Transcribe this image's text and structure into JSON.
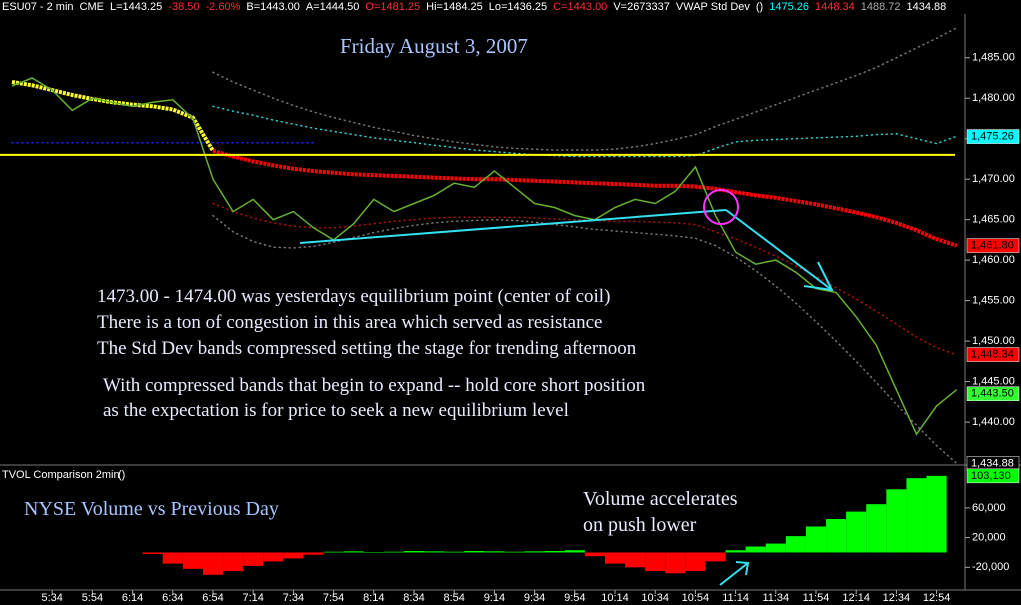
{
  "header": [
    {
      "text": "ESU07 - 2 min",
      "color": "#ffffff"
    },
    {
      "text": "CME",
      "color": "#ffffff"
    },
    {
      "text": "L=1443.25",
      "color": "#ffffff"
    },
    {
      "text": "-38.50",
      "color": "#ff3030"
    },
    {
      "text": "-2.60%",
      "color": "#ff3030"
    },
    {
      "text": "B=1443.00",
      "color": "#ffffff"
    },
    {
      "text": "A=1444.50",
      "color": "#ffffff"
    },
    {
      "text": "O=1481.25",
      "color": "#ff3030"
    },
    {
      "text": "Hi=1484.25",
      "color": "#ffffff"
    },
    {
      "text": "Lo=1436.25",
      "color": "#ffffff"
    },
    {
      "text": "C=1443.00",
      "color": "#ff3030"
    },
    {
      "text": "V=2673337",
      "color": "#ffffff"
    },
    {
      "text": "VWAP Std Dev",
      "color": "#ffffff"
    },
    {
      "text": "()",
      "color": "#ffffff"
    },
    {
      "text": "1475.26",
      "color": "#00ffff"
    },
    {
      "text": "1448.34",
      "color": "#ff3030"
    },
    {
      "text": "1488.72",
      "color": "#aaaaaa"
    },
    {
      "text": "1434.88",
      "color": "#ffffff"
    }
  ],
  "chart_data": [
    {
      "type": "line",
      "title": "Friday August 3, 2007",
      "annotations": [
        "1473.00 - 1474.00 was yesterdays equilibrium point (center of coil)",
        "There is a ton of congestion in this area which served as resistance",
        "The Std Dev bands compressed setting the stage for trending afternoon",
        "With compressed bands that begin to expand -- hold core short position",
        "as the expectation is for price to seek a new equilibrium level"
      ],
      "categories": [
        null,
        null,
        "5:34",
        null,
        "5:54",
        null,
        "6:14",
        null,
        "6:34",
        null,
        "6:54",
        null,
        "7:14",
        null,
        "7:34",
        null,
        "7:54",
        null,
        "8:14",
        null,
        "8:34",
        null,
        "8:54",
        null,
        "9:14",
        null,
        "9:34",
        null,
        "9:54",
        null,
        "10:14",
        null,
        "10:34",
        null,
        "10:54",
        null,
        "11:14",
        null,
        "11:34",
        null,
        "11:54",
        null,
        "12:14",
        null,
        "12:34",
        null,
        "12:54",
        null
      ],
      "ylim": [
        1434.7,
        1490.4
      ],
      "yticks": [
        {
          "value": 1440,
          "label": "1,440.00"
        },
        {
          "value": 1445,
          "label": "1,445.00"
        },
        {
          "value": 1450,
          "label": "1,450.00"
        },
        {
          "value": 1455,
          "label": "1,455.00"
        },
        {
          "value": 1460,
          "label": "1,460.00"
        },
        {
          "value": 1465,
          "label": "1,465.00"
        },
        {
          "value": 1470,
          "label": "1,470.00"
        },
        {
          "value": 1475,
          "label": "1,475.00"
        },
        {
          "value": 1480,
          "label": "1,480.00"
        },
        {
          "value": 1485,
          "label": "1,485.00"
        }
      ],
      "grid": false,
      "hlines": [
        {
          "value": 1473.0,
          "color": "#ffff00"
        }
      ],
      "series": [
        {
          "color": "#777777",
          "line_style": "dotted",
          "values": [
            null,
            null,
            null,
            null,
            null,
            null,
            null,
            null,
            null,
            null,
            1483.2,
            1482.0,
            1481.0,
            1480.0,
            1479.1,
            1478.3,
            1477.6,
            1477.0,
            1476.4,
            1475.9,
            1475.4,
            1475.0,
            1474.6,
            1474.3,
            1474.0,
            1473.8,
            1473.7,
            1473.6,
            1473.6,
            1473.6,
            1473.7,
            1474.0,
            1474.4,
            1474.9,
            1475.5,
            1476.5,
            1477.4,
            1478.3,
            1479.2,
            1480.1,
            1481.0,
            1481.9,
            1482.8,
            1483.8,
            1485.0,
            1486.2,
            1487.4,
            1488.7
          ]
        },
        {
          "color": "#777777",
          "line_style": "dotted",
          "values": [
            null,
            null,
            null,
            null,
            null,
            null,
            null,
            null,
            null,
            null,
            1465.5,
            1463.5,
            1462.3,
            1461.6,
            1461.5,
            1461.7,
            1462.2,
            1462.8,
            1463.4,
            1463.9,
            1464.3,
            1464.6,
            1464.8,
            1464.9,
            1465.0,
            1464.9,
            1464.7,
            1464.4,
            1464.1,
            1463.8,
            1463.6,
            1463.4,
            1463.2,
            1463.0,
            1462.7,
            1461.8,
            1460.4,
            1458.7,
            1456.8,
            1454.7,
            1452.4,
            1450.0,
            1447.5,
            1444.9,
            1442.2,
            1439.6,
            1437.1,
            1434.9
          ]
        },
        {
          "color": "#33cccc",
          "line_style": "dotted",
          "values": [
            null,
            null,
            null,
            null,
            null,
            null,
            null,
            null,
            null,
            null,
            1479.0,
            1478.4,
            1477.9,
            1477.3,
            1476.8,
            1476.3,
            1475.9,
            1475.5,
            1475.1,
            1474.8,
            1474.5,
            1474.2,
            1473.9,
            1473.6,
            1473.4,
            1473.2,
            1473.0,
            1472.9,
            1472.8,
            1472.8,
            1472.8,
            1472.8,
            1472.8,
            1472.8,
            1472.9,
            1473.8,
            1474.6,
            1474.8,
            1474.9,
            1475.0,
            1475.1,
            1475.2,
            1475.3,
            1475.5,
            1475.6,
            1475.0,
            1474.4,
            1475.3
          ]
        },
        {
          "color": "#aa1111",
          "line_style": "dotted",
          "values": [
            null,
            null,
            null,
            null,
            null,
            null,
            null,
            null,
            null,
            null,
            1467.0,
            1466.0,
            1465.2,
            1464.6,
            1464.2,
            1464.0,
            1464.0,
            1464.2,
            1464.5,
            1464.8,
            1465.0,
            1465.2,
            1465.3,
            1465.3,
            1465.3,
            1465.3,
            1465.2,
            1465.1,
            1465.0,
            1464.9,
            1464.8,
            1464.8,
            1464.7,
            1464.6,
            1464.4,
            1463.5,
            1462.6,
            1461.6,
            1460.5,
            1459.3,
            1458.0,
            1456.6,
            1455.2,
            1453.7,
            1452.1,
            1450.5,
            1449.2,
            1448.3
          ]
        },
        {
          "color": "#2222ff",
          "line_style": "dotted",
          "values": [
            1474.5,
            1474.5,
            1474.5,
            1474.5,
            1474.5,
            1474.5,
            1474.5,
            1474.5,
            1474.5,
            1474.5,
            1474.5,
            1474.5,
            1474.5,
            1474.5,
            1474.5,
            1474.5,
            null,
            null,
            null,
            null,
            null,
            null,
            null,
            null,
            null,
            null,
            null,
            null,
            null,
            null,
            null,
            null,
            null,
            null,
            null,
            null,
            null,
            null,
            null,
            null,
            null,
            null,
            null,
            null,
            null,
            null,
            null,
            null
          ]
        },
        {
          "color": "#ffff33",
          "line_style": "beads",
          "values": [
            1482.0,
            1481.6,
            1481.0,
            1480.4,
            1479.9,
            1479.5,
            1479.2,
            1479.0,
            1478.6,
            1477.6,
            1473.5,
            null,
            null,
            null,
            null,
            null,
            null,
            null,
            null,
            null,
            null,
            null,
            null,
            null,
            null,
            null,
            null,
            null,
            null,
            null,
            null,
            null,
            null,
            null,
            null,
            null,
            null,
            null,
            null,
            null,
            null,
            null,
            null,
            null,
            null,
            null,
            null,
            null
          ]
        },
        {
          "color": "#ff0000",
          "line_style": "beads",
          "values": [
            null,
            null,
            null,
            null,
            null,
            null,
            null,
            null,
            null,
            null,
            1473.5,
            1472.8,
            1472.2,
            1471.7,
            1471.3,
            1471.0,
            1470.8,
            1470.6,
            1470.5,
            1470.4,
            1470.3,
            1470.2,
            1470.1,
            1470.0,
            1470.0,
            1469.9,
            1469.8,
            1469.7,
            1469.6,
            1469.5,
            1469.4,
            1469.3,
            1469.2,
            1469.2,
            1469.1,
            1468.8,
            1468.4,
            1468.0,
            1467.7,
            1467.3,
            1466.9,
            1466.4,
            1465.9,
            1465.3,
            1464.6,
            1463.7,
            1462.6,
            1461.8
          ]
        },
        {
          "color": "#66b033",
          "line_style": "solid",
          "values": [
            1481.5,
            1482.5,
            1481.0,
            1478.5,
            1480.0,
            1479.5,
            1479.0,
            1479.5,
            1479.8,
            1477.5,
            1470.0,
            1466.0,
            1467.5,
            1465.0,
            1466.0,
            1464.0,
            1462.5,
            1464.5,
            1467.5,
            1466.0,
            1467.0,
            1468.0,
            1469.5,
            1469.0,
            1471.0,
            1469.0,
            1467.0,
            1466.5,
            1465.5,
            1465.0,
            1466.5,
            1467.5,
            1467.0,
            1468.5,
            1471.5,
            1465.5,
            1461.0,
            1459.5,
            1460.0,
            1458.5,
            1456.5,
            1456.0,
            1453.0,
            1449.5,
            1444.0,
            1438.5,
            1442.0,
            1444.0
          ]
        }
      ],
      "badges": [
        {
          "value": 1475.26,
          "label": "1,475.26",
          "color": "#00ffff",
          "text_color": "#000000"
        },
        {
          "value": 1461.8,
          "label": "1,461.80",
          "color": "#ff0000",
          "text_color": "#000000"
        },
        {
          "value": 1448.34,
          "label": "1,448.34",
          "color": "#ff0000",
          "text_color": "#000000"
        },
        {
          "value": 1443.5,
          "label": "1,443.50",
          "color": "#33ff33",
          "text_color": "#000000"
        },
        {
          "value": 1434.88,
          "label": "1,434.88",
          "color": "#000000",
          "text_color": "#ffffff"
        }
      ]
    },
    {
      "type": "bar",
      "title": "TVOL Comparison 2min",
      "subtitle": "()",
      "annotations": [
        "NYSE Volume vs Previous Day",
        "Volume accelerates",
        "on push lower"
      ],
      "positive_color": "#00ff00",
      "negative_color": "#ff0000",
      "ylim": [
        -50500,
        111000
      ],
      "yticks": [
        {
          "value": -20000,
          "label": "-20,000"
        },
        {
          "value": 20000,
          "label": "20,000"
        },
        {
          "value": 60000,
          "label": "60,000"
        }
      ],
      "values": [
        null,
        null,
        null,
        null,
        null,
        null,
        null,
        -2000,
        -15000,
        -22000,
        -30000,
        -25000,
        -18000,
        -12000,
        -8000,
        -3000,
        1000,
        1500,
        500,
        1000,
        2000,
        1500,
        1000,
        2000,
        1500,
        1000,
        1500,
        2000,
        3000,
        -5000,
        -15000,
        -20000,
        -25000,
        -28000,
        -25000,
        -12000,
        3000,
        8000,
        12000,
        22000,
        35000,
        45000,
        55000,
        65000,
        85000,
        100000,
        103130,
        null
      ],
      "badges": [
        {
          "value": 103130,
          "label": "103,130",
          "color": "#00ff00",
          "text_color": "#000000"
        }
      ]
    }
  ]
}
